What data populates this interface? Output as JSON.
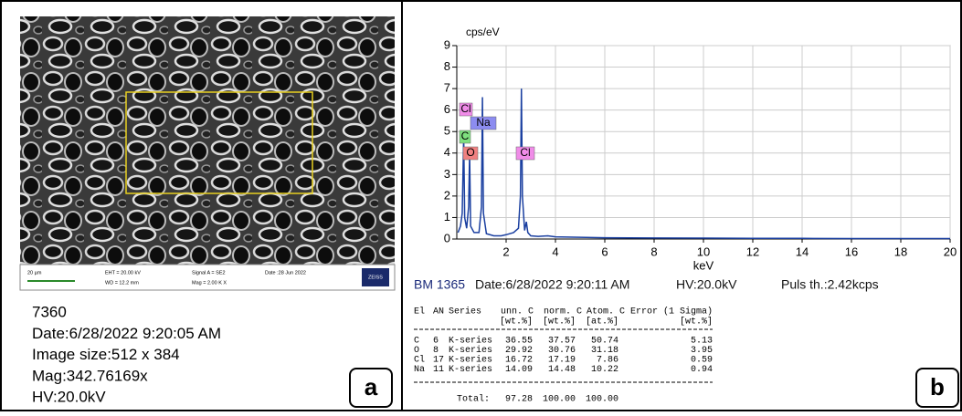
{
  "panel_a": {
    "scale_bar": {
      "length": "20 µm",
      "eht": "EHT = 20.00 kV",
      "wd": "WD = 12.2 mm",
      "signal": "Signal A = SE2",
      "mag": "Mag =   2.00 K X",
      "date": "Date :28 Jun 2022",
      "brand": "ZEISS"
    },
    "info": [
      "7360",
      "Date:6/28/2022 9:20:05 AM",
      "Image size:512 x 384",
      "Mag:342.76169x",
      "HV:20.0kV"
    ],
    "label": "a"
  },
  "chart_data": {
    "type": "line",
    "y_label": "cps/eV",
    "x_label": "keV",
    "x": [
      0.05,
      0.15,
      0.22,
      0.28,
      0.32,
      0.4,
      0.48,
      0.52,
      0.56,
      0.7,
      0.9,
      1.0,
      1.04,
      1.08,
      1.2,
      1.5,
      1.8,
      2.0,
      2.3,
      2.5,
      2.58,
      2.62,
      2.66,
      2.75,
      2.82,
      2.88,
      3.0,
      3.3,
      3.69,
      4,
      5,
      6,
      8,
      10,
      12,
      14,
      16,
      18,
      20
    ],
    "series": [
      {
        "color": "#1a3fa0",
        "values": [
          0.3,
          0.6,
          1.2,
          4.8,
          1.0,
          0.5,
          1.5,
          4.0,
          0.6,
          0.3,
          0.3,
          1.5,
          6.6,
          1.2,
          0.25,
          0.15,
          0.15,
          0.2,
          0.3,
          0.5,
          2.0,
          7.0,
          2.0,
          0.4,
          0.8,
          0.3,
          0.15,
          0.12,
          0.15,
          0.1,
          0.08,
          0.06,
          0.05,
          0.04,
          0.03,
          0.03,
          0.02,
          0.02,
          0.02
        ]
      }
    ],
    "xlim": [
      0,
      20
    ],
    "xticks": [
      2,
      4,
      6,
      8,
      10,
      12,
      14,
      16,
      18,
      20
    ],
    "ylim": [
      0,
      9
    ],
    "yticks": [
      0,
      1,
      2,
      3,
      4,
      5,
      6,
      7,
      8,
      9
    ],
    "grid": true,
    "annotations": [
      {
        "text": "Cl",
        "color": "#f08ce8"
      },
      {
        "text": "Na",
        "color": "#8c8cf0"
      },
      {
        "text": "C",
        "color": "#7ee07e"
      },
      {
        "text": "O",
        "color": "#f08080"
      },
      {
        "text": "Cl",
        "color": "#f08ce8"
      }
    ]
  },
  "panel_b": {
    "info": [
      "BM 1365",
      "Date:6/28/2022 9:20:11 AM",
      "HV:20.0kV",
      "Puls th.:2.42kcps"
    ],
    "table": {
      "header": [
        "El",
        "AN",
        "Series",
        "unn. C",
        "norm. C",
        "Atom. C",
        "Error (1 Sigma)"
      ],
      "units": [
        "[wt.%]",
        "[wt.%]",
        "[at.%]",
        "[wt.%]"
      ],
      "rows": [
        [
          "C",
          "6",
          "K-series",
          "36.55",
          "37.57",
          "50.74",
          "5.13"
        ],
        [
          "O",
          "8",
          "K-series",
          "29.92",
          "30.76",
          "31.18",
          "3.95"
        ],
        [
          "Cl",
          "17",
          "K-series",
          "16.72",
          "17.19",
          "7.86",
          "0.59"
        ],
        [
          "Na",
          "11",
          "K-series",
          "14.09",
          "14.48",
          "10.22",
          "0.94"
        ]
      ],
      "total": [
        "Total:",
        "97.28",
        "100.00",
        "100.00"
      ]
    },
    "label": "b"
  }
}
